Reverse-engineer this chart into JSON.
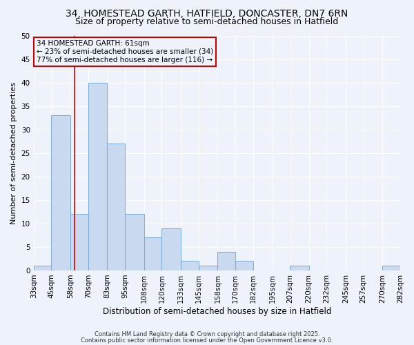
{
  "title1": "34, HOMESTEAD GARTH, HATFIELD, DONCASTER, DN7 6RN",
  "title2": "Size of property relative to semi-detached houses in Hatfield",
  "xlabel": "Distribution of semi-detached houses by size in Hatfield",
  "ylabel": "Number of semi-detached properties",
  "bin_edges": [
    33,
    45,
    58,
    70,
    83,
    95,
    108,
    120,
    133,
    145,
    158,
    170,
    182,
    195,
    207,
    220,
    232,
    245,
    257,
    270,
    282
  ],
  "bin_labels": [
    "33sqm",
    "45sqm",
    "58sqm",
    "70sqm",
    "83sqm",
    "95sqm",
    "108sqm",
    "120sqm",
    "133sqm",
    "145sqm",
    "158sqm",
    "170sqm",
    "182sqm",
    "195sqm",
    "207sqm",
    "220sqm",
    "232sqm",
    "245sqm",
    "257sqm",
    "270sqm",
    "282sqm"
  ],
  "counts": [
    1,
    33,
    12,
    40,
    27,
    12,
    7,
    9,
    2,
    1,
    4,
    2,
    0,
    0,
    1,
    0,
    0,
    0,
    0,
    1
  ],
  "bar_color": "#c8d9f0",
  "bar_edge_color": "#7aaad4",
  "vline_x": 61,
  "vline_color": "#cc0000",
  "annotation_box_color": "#cc0000",
  "annotation_line1": "34 HOMESTEAD GARTH: 61sqm",
  "annotation_line2": "← 23% of semi-detached houses are smaller (34)",
  "annotation_line3": "77% of semi-detached houses are larger (116) →",
  "annotation_fontsize": 7.5,
  "title_fontsize1": 10,
  "title_fontsize2": 9,
  "xlabel_fontsize": 8.5,
  "ylabel_fontsize": 8,
  "tick_fontsize": 7.5,
  "footer1": "Contains HM Land Registry data © Crown copyright and database right 2025.",
  "footer2": "Contains public sector information licensed under the Open Government Licence v3.0.",
  "ylim": [
    0,
    50
  ],
  "background_color": "#eef2fa",
  "grid_color": "#ffffff"
}
